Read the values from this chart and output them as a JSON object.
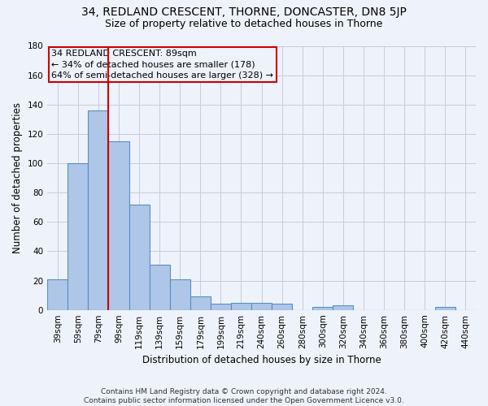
{
  "title1": "34, REDLAND CRESCENT, THORNE, DONCASTER, DN8 5JP",
  "title2": "Size of property relative to detached houses in Thorne",
  "xlabel": "Distribution of detached houses by size in Thorne",
  "ylabel": "Number of detached properties",
  "footer": "Contains HM Land Registry data © Crown copyright and database right 2024.\nContains public sector information licensed under the Open Government Licence v3.0.",
  "annotation_line1": "34 REDLAND CRESCENT: 89sqm",
  "annotation_line2": "← 34% of detached houses are smaller (178)",
  "annotation_line3": "64% of semi-detached houses are larger (328) →",
  "bar_categories": [
    "39sqm",
    "59sqm",
    "79sqm",
    "99sqm",
    "119sqm",
    "139sqm",
    "159sqm",
    "179sqm",
    "199sqm",
    "219sqm",
    "240sqm",
    "260sqm",
    "280sqm",
    "300sqm",
    "320sqm",
    "340sqm",
    "360sqm",
    "380sqm",
    "400sqm",
    "420sqm",
    "440sqm"
  ],
  "bar_values": [
    21,
    100,
    136,
    115,
    72,
    31,
    21,
    9,
    4,
    5,
    5,
    4,
    0,
    2,
    3,
    0,
    0,
    0,
    0,
    2,
    0
  ],
  "bar_color": "#aec6e8",
  "bar_edge_color": "#5a8fc0",
  "marker_line_color": "#cc0000",
  "ylim": [
    0,
    180
  ],
  "yticks": [
    0,
    20,
    40,
    60,
    80,
    100,
    120,
    140,
    160,
    180
  ],
  "bg_color": "#eef2fa",
  "grid_color": "#c8ccd8",
  "annotation_box_color": "#cc0000",
  "title1_fontsize": 10,
  "title2_fontsize": 9,
  "xlabel_fontsize": 8.5,
  "ylabel_fontsize": 8.5,
  "tick_fontsize": 7.5,
  "annotation_fontsize": 8,
  "footer_fontsize": 6.5
}
